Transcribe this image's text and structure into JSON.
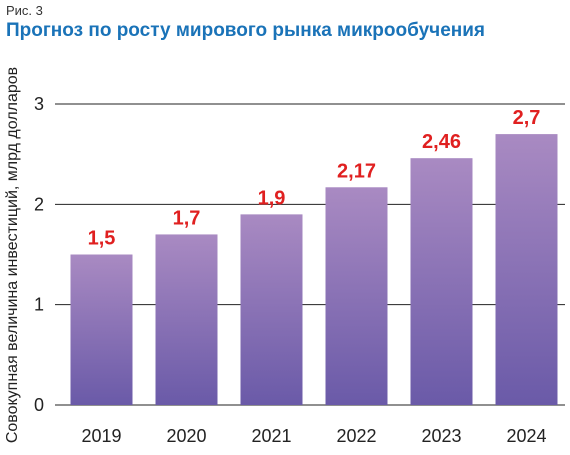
{
  "figure_label": "Рис. 3",
  "chart_data": {
    "type": "bar",
    "title": "Прогноз по росту мирового рынка микрообучения",
    "xlabel": "",
    "ylabel": "Совокупная величина инвестиций, млрд долларов",
    "categories": [
      "2019",
      "2020",
      "2021",
      "2022",
      "2023",
      "2024"
    ],
    "values": [
      1.5,
      1.7,
      1.9,
      2.17,
      2.46,
      2.7
    ],
    "data_labels": [
      "1,5",
      "1,7",
      "1,9",
      "2,17",
      "2,46",
      "2,7"
    ],
    "y_ticks": [
      0,
      1,
      2,
      3
    ],
    "y_tick_labels": [
      "0",
      "1",
      "2",
      "3"
    ],
    "ylim": [
      0,
      3
    ],
    "grid": true,
    "legend": "none",
    "colors": {
      "bar_top": "#a98ac2",
      "bar_bottom": "#6a5aa8",
      "data_label": "#e02020",
      "title": "#1a73b8",
      "grid": "#222222"
    }
  }
}
